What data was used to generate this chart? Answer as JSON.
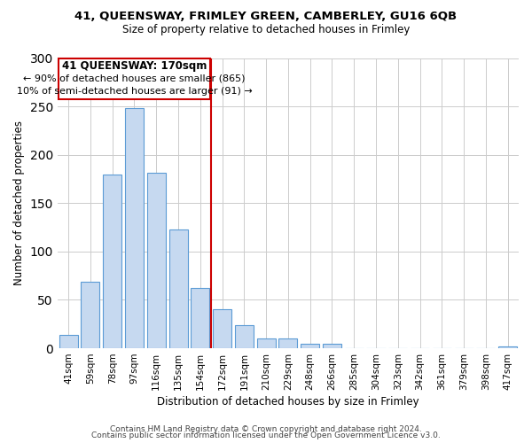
{
  "title1": "41, QUEENSWAY, FRIMLEY GREEN, CAMBERLEY, GU16 6QB",
  "title2": "Size of property relative to detached houses in Frimley",
  "xlabel": "Distribution of detached houses by size in Frimley",
  "ylabel": "Number of detached properties",
  "bar_labels": [
    "41sqm",
    "59sqm",
    "78sqm",
    "97sqm",
    "116sqm",
    "135sqm",
    "154sqm",
    "172sqm",
    "191sqm",
    "210sqm",
    "229sqm",
    "248sqm",
    "266sqm",
    "285sqm",
    "304sqm",
    "323sqm",
    "342sqm",
    "361sqm",
    "379sqm",
    "398sqm",
    "417sqm"
  ],
  "bar_values": [
    14,
    69,
    180,
    248,
    181,
    123,
    62,
    40,
    24,
    10,
    10,
    5,
    5,
    0,
    0,
    0,
    0,
    0,
    0,
    0,
    2
  ],
  "bar_color": "#c6d9f0",
  "bar_edge_color": "#5b9bd5",
  "vline_color": "#cc0000",
  "annotation_line1": "41 QUEENSWAY: 170sqm",
  "annotation_line2": "← 90% of detached houses are smaller (865)",
  "annotation_line3": "10% of semi-detached houses are larger (91) →",
  "annotation_box_edge": "#cc0000",
  "ylim": [
    0,
    300
  ],
  "yticks": [
    0,
    50,
    100,
    150,
    200,
    250,
    300
  ],
  "footer1": "Contains HM Land Registry data © Crown copyright and database right 2024.",
  "footer2": "Contains public sector information licensed under the Open Government Licence v3.0."
}
